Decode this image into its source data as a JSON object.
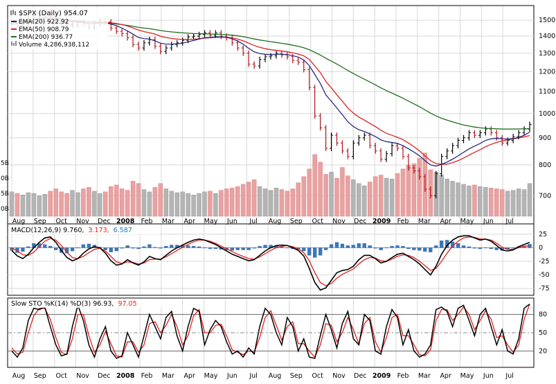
{
  "chart_data": [
    {
      "type": "line",
      "panel": "price",
      "title": "$SPX (Daily) 954.07",
      "scale": "log",
      "ylim": [
        640,
        1580
      ],
      "y_ticks": [
        "1500",
        "1400",
        "1300",
        "1200",
        "1100",
        "1000",
        "900",
        "800",
        "700"
      ],
      "volume_ticks": [
        "0B",
        "5B",
        "0B",
        "5B"
      ],
      "x_ticks": [
        "Aug",
        "Sep",
        "Oct",
        "Nov",
        "Dec",
        "2008",
        "Feb",
        "Mar",
        "Apr",
        "May",
        "Jun",
        "Jul",
        "Aug",
        "Sep",
        "Oct",
        "Nov",
        "Dec",
        "2009",
        "Feb",
        "Mar",
        "Apr",
        "May",
        "Jun",
        "Jul"
      ],
      "legend": [
        {
          "text": "$SPX (Daily) 954.07",
          "color": "#000000",
          "symbol": "bars"
        },
        {
          "text": "EMA(20) 922.92",
          "color": "#1a1a7a",
          "symbol": "line"
        },
        {
          "text": "EMA(50) 908.79",
          "color": "#e02020",
          "symbol": "line"
        },
        {
          "text": "EMA(200) 936.77",
          "color": "#1e6e1e",
          "symbol": "line"
        },
        {
          "text": "Volume 4,286,938,112",
          "color": "#888888",
          "symbol": "volume"
        }
      ],
      "price_close": [
        1480,
        1465,
        1475,
        1510,
        1530,
        1540,
        1555,
        1535,
        1500,
        1480,
        1470,
        1470,
        1490,
        1480,
        1455,
        1480,
        1495,
        1490,
        1450,
        1430,
        1415,
        1390,
        1350,
        1330,
        1360,
        1380,
        1340,
        1310,
        1330,
        1350,
        1360,
        1375,
        1395,
        1400,
        1410,
        1420,
        1405,
        1420,
        1400,
        1390,
        1360,
        1330,
        1300,
        1240,
        1230,
        1265,
        1280,
        1285,
        1300,
        1290,
        1280,
        1260,
        1250,
        1210,
        1120,
        990,
        940,
        860,
        910,
        880,
        850,
        830,
        880,
        900,
        910,
        870,
        850,
        820,
        840,
        870,
        860,
        830,
        790,
        780,
        760,
        720,
        700,
        770,
        830,
        850,
        870,
        890,
        900,
        920,
        910,
        920,
        935,
        920,
        900,
        880,
        890,
        905,
        920,
        935,
        954
      ],
      "ema20": [
        1490,
        1485,
        1482,
        1490,
        1500,
        1510,
        1520,
        1522,
        1518,
        1510,
        1498,
        1490,
        1488,
        1485,
        1478,
        1478,
        1482,
        1483,
        1475,
        1465,
        1450,
        1432,
        1412,
        1392,
        1385,
        1382,
        1372,
        1358,
        1352,
        1352,
        1354,
        1358,
        1366,
        1374,
        1382,
        1390,
        1392,
        1396,
        1396,
        1393,
        1384,
        1370,
        1352,
        1328,
        1308,
        1298,
        1294,
        1292,
        1294,
        1294,
        1292,
        1286,
        1278,
        1262,
        1232,
        1185,
        1140,
        1085,
        1055,
        1025,
        995,
        965,
        945,
        932,
        925,
        915,
        905,
        892,
        885,
        882,
        878,
        870,
        858,
        846,
        832,
        815,
        800,
        796,
        802,
        810,
        820,
        832,
        845,
        858,
        868,
        878,
        890,
        896,
        898,
        896,
        895,
        897,
        902,
        910,
        922.92
      ],
      "ema50": [
        1500,
        1496,
        1494,
        1496,
        1500,
        1505,
        1510,
        1512,
        1512,
        1510,
        1505,
        1500,
        1497,
        1494,
        1490,
        1488,
        1487,
        1487,
        1484,
        1479,
        1472,
        1463,
        1451,
        1438,
        1428,
        1421,
        1412,
        1400,
        1392,
        1386,
        1382,
        1380,
        1380,
        1381,
        1384,
        1388,
        1390,
        1393,
        1394,
        1393,
        1389,
        1382,
        1372,
        1358,
        1344,
        1334,
        1326,
        1320,
        1316,
        1312,
        1308,
        1302,
        1295,
        1285,
        1265,
        1230,
        1195,
        1150,
        1118,
        1085,
        1055,
        1025,
        1002,
        985,
        972,
        958,
        945,
        930,
        918,
        910,
        902,
        893,
        880,
        866,
        850,
        832,
        815,
        805,
        802,
        803,
        808,
        815,
        824,
        835,
        845,
        855,
        866,
        875,
        882,
        888,
        892,
        896,
        900,
        904,
        908.79
      ],
      "ema200": [
        1475,
        1478,
        1481,
        1484,
        1487,
        1490,
        1492,
        1494,
        1495,
        1495,
        1494,
        1493,
        1492,
        1490,
        1488,
        1486,
        1484,
        1482,
        1479,
        1476,
        1472,
        1467,
        1461,
        1455,
        1450,
        1446,
        1441,
        1435,
        1430,
        1426,
        1423,
        1420,
        1418,
        1416,
        1415,
        1414,
        1413,
        1412,
        1411,
        1409,
        1406,
        1402,
        1397,
        1390,
        1383,
        1377,
        1372,
        1367,
        1362,
        1357,
        1352,
        1346,
        1339,
        1331,
        1320,
        1305,
        1290,
        1272,
        1256,
        1240,
        1223,
        1206,
        1190,
        1175,
        1161,
        1147,
        1133,
        1118,
        1105,
        1093,
        1081,
        1069,
        1056,
        1043,
        1030,
        1016,
        1002,
        990,
        980,
        972,
        965,
        958,
        952,
        947,
        943,
        940,
        938,
        937,
        936,
        935,
        935,
        935,
        935.5,
        936,
        936.77
      ],
      "volume_billions": [
        3.2,
        3.0,
        2.8,
        3.1,
        3.0,
        2.7,
        2.9,
        3.3,
        3.6,
        3.2,
        3.0,
        3.4,
        3.1,
        3.6,
        3.8,
        3.3,
        3.0,
        3.2,
        3.9,
        4.1,
        3.6,
        3.4,
        4.6,
        4.3,
        3.5,
        3.2,
        3.8,
        4.3,
        3.6,
        3.3,
        3.1,
        3.2,
        3.0,
        2.8,
        3.0,
        3.2,
        3.3,
        3.0,
        3.4,
        3.6,
        3.7,
        3.9,
        4.2,
        4.5,
        4.8,
        3.9,
        3.6,
        3.4,
        3.7,
        3.5,
        3.3,
        3.6,
        4.4,
        5.2,
        6.2,
        8.1,
        7.1,
        5.5,
        5.8,
        5.0,
        6.4,
        5.3,
        4.8,
        4.3,
        4.0,
        4.5,
        5.2,
        5.4,
        5.0,
        4.9,
        5.6,
        6.2,
        6.7,
        6.9,
        7.6,
        8.3,
        6.1,
        5.8,
        5.4,
        4.9,
        4.6,
        4.4,
        4.2,
        4.0,
        4.1,
        3.9,
        3.8,
        3.7,
        3.6,
        3.5,
        3.3,
        3.4,
        3.6,
        3.5,
        4.3
      ]
    },
    {
      "type": "line",
      "panel": "macd",
      "title": "MACD(12,26,9) 9.760, 3.173, 6.587",
      "legend": [
        {
          "text": "MACD(12,26,9) 9.760,",
          "color": "#000000"
        },
        {
          "text": "3.173,",
          "color": "#e02020"
        },
        {
          "text": "6.587",
          "color": "#2277bb"
        }
      ],
      "ylim": [
        -85,
        35
      ],
      "y_ticks": [
        "25",
        "0",
        "-25",
        "-50",
        "-75"
      ],
      "x_ticks": [
        "Aug",
        "Sep",
        "Oct",
        "Nov",
        "Dec",
        "2008",
        "Feb",
        "Mar",
        "Apr",
        "May",
        "Jun",
        "Jul",
        "Aug",
        "Sep",
        "Oct",
        "Nov",
        "Dec",
        "2009",
        "Feb",
        "Mar",
        "Apr",
        "May",
        "Jun",
        "Jul"
      ],
      "macd": [
        -5,
        -15,
        -20,
        -12,
        0,
        10,
        18,
        20,
        10,
        -5,
        -18,
        -24,
        -20,
        -10,
        -2,
        2,
        0,
        -10,
        -24,
        -32,
        -30,
        -22,
        -28,
        -32,
        -26,
        -16,
        -20,
        -22,
        -14,
        -6,
        0,
        5,
        10,
        14,
        16,
        14,
        10,
        6,
        0,
        -6,
        -12,
        -16,
        -20,
        -24,
        -22,
        -14,
        -6,
        0,
        4,
        5,
        4,
        0,
        -5,
        -15,
        -38,
        -64,
        -78,
        -74,
        -60,
        -46,
        -42,
        -40,
        -34,
        -22,
        -14,
        -14,
        -20,
        -28,
        -25,
        -18,
        -12,
        -10,
        -16,
        -22,
        -30,
        -40,
        -50,
        -34,
        -12,
        4,
        14,
        20,
        22,
        22,
        18,
        14,
        16,
        12,
        4,
        -4,
        -6,
        -4,
        2,
        6,
        9.76
      ],
      "signal": [
        0,
        -6,
        -13,
        -14,
        -8,
        2,
        12,
        17,
        14,
        4,
        -8,
        -18,
        -20,
        -16,
        -9,
        -3,
        -1,
        -6,
        -16,
        -26,
        -29,
        -26,
        -27,
        -30,
        -28,
        -22,
        -21,
        -21,
        -17,
        -11,
        -5,
        1,
        6,
        11,
        14,
        14,
        12,
        8,
        3,
        -2,
        -7,
        -12,
        -16,
        -20,
        -21,
        -17,
        -11,
        -5,
        0,
        3,
        4,
        2,
        -2,
        -9,
        -24,
        -46,
        -64,
        -70,
        -66,
        -56,
        -49,
        -44,
        -39,
        -30,
        -22,
        -18,
        -19,
        -24,
        -25,
        -21,
        -16,
        -13,
        -14,
        -18,
        -25,
        -33,
        -42,
        -38,
        -25,
        -10,
        3,
        12,
        18,
        20,
        19,
        16,
        16,
        14,
        8,
        1,
        -3,
        -3,
        0,
        3,
        3.173
      ]
    },
    {
      "type": "line",
      "panel": "stochastic",
      "title": "Slow STO %K(14) %D(3) 96.93, 97.05",
      "legend": [
        {
          "text": "Slow STO %K(14) %D(3) 96.93,",
          "color": "#000000"
        },
        {
          "text": "97.05",
          "color": "#e02020"
        }
      ],
      "ylim": [
        0,
        100
      ],
      "y_ticks": [
        "80",
        "50",
        "20"
      ],
      "x_ticks": [
        "Aug",
        "Sep",
        "Oct",
        "Nov",
        "Dec",
        "2008",
        "Feb",
        "Mar",
        "Apr",
        "May",
        "Jun",
        "Jul",
        "Aug",
        "Sep",
        "Oct",
        "Nov",
        "Dec",
        "2009",
        "Feb",
        "Mar",
        "Apr",
        "May",
        "Jun",
        "Jul"
      ],
      "k": [
        20,
        10,
        25,
        70,
        90,
        88,
        92,
        60,
        30,
        12,
        15,
        60,
        95,
        70,
        30,
        10,
        40,
        60,
        20,
        8,
        12,
        50,
        30,
        10,
        45,
        80,
        60,
        40,
        75,
        85,
        45,
        20,
        60,
        90,
        85,
        30,
        55,
        70,
        60,
        35,
        15,
        20,
        10,
        25,
        15,
        60,
        90,
        80,
        50,
        30,
        75,
        60,
        20,
        40,
        10,
        8,
        45,
        80,
        55,
        25,
        65,
        85,
        40,
        30,
        80,
        70,
        20,
        15,
        60,
        88,
        75,
        30,
        55,
        20,
        10,
        15,
        30,
        88,
        92,
        85,
        60,
        90,
        95,
        70,
        45,
        80,
        90,
        60,
        30,
        55,
        20,
        15,
        40,
        90,
        96.93
      ],
      "d": [
        25,
        15,
        18,
        50,
        78,
        90,
        90,
        72,
        42,
        18,
        14,
        40,
        80,
        80,
        45,
        18,
        30,
        52,
        32,
        12,
        10,
        35,
        35,
        18,
        30,
        65,
        68,
        50,
        62,
        80,
        60,
        30,
        45,
        78,
        88,
        50,
        50,
        62,
        64,
        45,
        22,
        18,
        14,
        20,
        18,
        42,
        75,
        86,
        62,
        38,
        60,
        68,
        32,
        32,
        20,
        10,
        30,
        65,
        62,
        35,
        50,
        75,
        55,
        32,
        65,
        75,
        35,
        18,
        42,
        75,
        80,
        45,
        45,
        30,
        14,
        12,
        22,
        70,
        88,
        88,
        70,
        80,
        92,
        80,
        55,
        70,
        86,
        72,
        42,
        45,
        30,
        18,
        30,
        72,
        97.05
      ]
    }
  ]
}
